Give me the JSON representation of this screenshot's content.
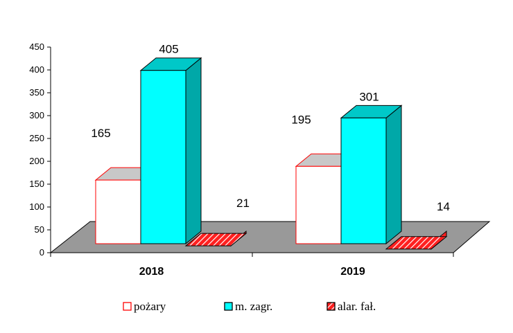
{
  "chart_data": {
    "type": "bar",
    "categories": [
      "2018",
      "2019"
    ],
    "series": [
      {
        "name": "pożary",
        "values": [
          165,
          195
        ],
        "color": "#ffffff",
        "edge": "#ff0000"
      },
      {
        "name": "m. zagr.",
        "values": [
          405,
          301
        ],
        "color": "#00ffff",
        "edge": "#000000"
      },
      {
        "name": "alar. fał.",
        "values": [
          21,
          14
        ],
        "color": "#ff2020",
        "edge": "#000000",
        "pattern": "hatched"
      }
    ],
    "ylim": [
      0,
      450
    ],
    "yticks": [
      "0",
      "50",
      "100",
      "150",
      "200",
      "250",
      "300",
      "350",
      "400",
      "450"
    ],
    "legend_position": "bottom",
    "floor_color": "#999999"
  }
}
